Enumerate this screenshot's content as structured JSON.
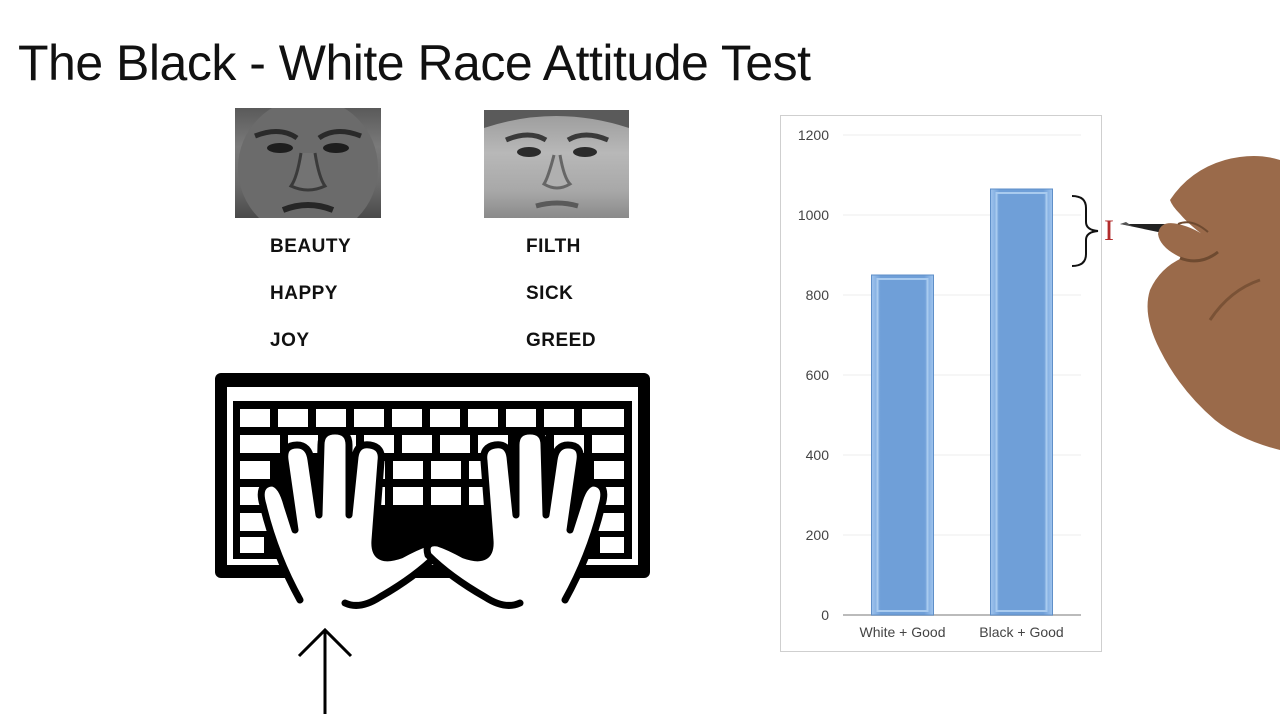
{
  "title": "The Black - White Race Attitude Test",
  "words_left": [
    "BEAUTY",
    "HAPPY",
    "JOY"
  ],
  "words_right": [
    "FILTH",
    "SICK",
    "GREED"
  ],
  "annotation_letter": "I",
  "icons": [
    "face-photo-left",
    "face-photo-right",
    "keyboard-with-hands-icon",
    "up-arrow-icon",
    "curly-brace-icon",
    "drawing-hand-with-pen"
  ],
  "chart_data": {
    "type": "bar",
    "categories": [
      "White + Good",
      "Black  + Good"
    ],
    "values": [
      850,
      1065
    ],
    "ylim": [
      0,
      1200
    ],
    "yticks": [
      0,
      200,
      400,
      600,
      800,
      1000,
      1200
    ],
    "grid": true,
    "bar_color": "#6f9fd8",
    "title": "",
    "xlabel": "",
    "ylabel": ""
  }
}
